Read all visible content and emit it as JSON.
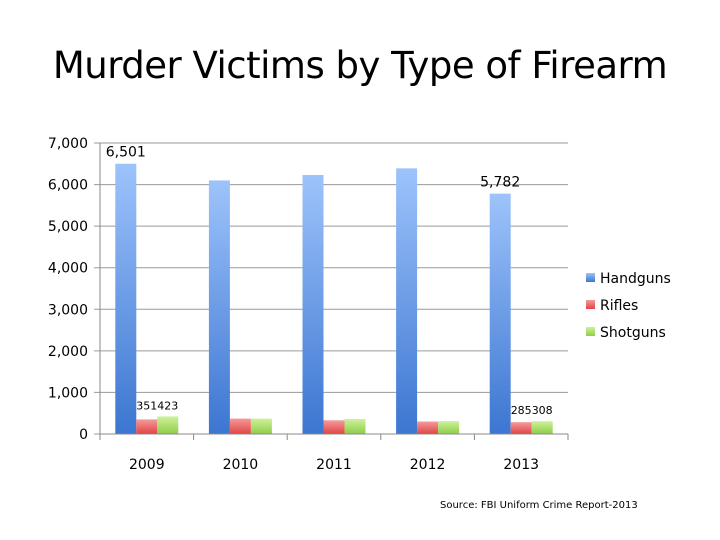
{
  "title": "Murder Victims by Type of Firearm",
  "source": "Source: FBI Uniform Crime Report-2013",
  "chart_data": {
    "type": "bar",
    "title": "Murder Victims by Type of Firearm",
    "categories": [
      "2009",
      "2010",
      "2011",
      "2012",
      "2013"
    ],
    "series": [
      {
        "name": "Handguns",
        "color": "#4f86d6",
        "values": [
          6501,
          6100,
          6230,
          6390,
          5782
        ]
      },
      {
        "name": "Rifles",
        "color": "#e84f4f",
        "values": [
          351,
          370,
          330,
          300,
          285
        ]
      },
      {
        "name": "Shotguns",
        "color": "#9fd65a",
        "values": [
          423,
          370,
          360,
          310,
          308
        ]
      }
    ],
    "data_labels": [
      {
        "series": 0,
        "index": 0,
        "text": "6,501"
      },
      {
        "series": 0,
        "index": 4,
        "text": "5,782"
      },
      {
        "series": 1,
        "index": 0,
        "text": "351"
      },
      {
        "series": 2,
        "index": 0,
        "text": "423"
      },
      {
        "series": 1,
        "index": 4,
        "text": "285"
      },
      {
        "series": 2,
        "index": 4,
        "text": "308"
      }
    ],
    "y_ticks": [
      "0",
      "1,000",
      "2,000",
      "3,000",
      "4,000",
      "5,000",
      "6,000",
      "7,000"
    ],
    "ylim": [
      0,
      7000
    ],
    "grid": true,
    "legend_position": "right"
  }
}
